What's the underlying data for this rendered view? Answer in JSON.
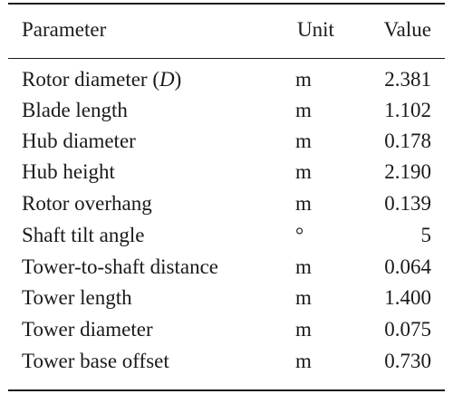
{
  "table": {
    "headers": {
      "parameter": "Parameter",
      "unit": "Unit",
      "value": "Value"
    },
    "rows": [
      {
        "parameter": "Rotor diameter (",
        "symbol": "D",
        "suffix": ")",
        "unit": "m",
        "value": "2.381"
      },
      {
        "parameter": "Blade length",
        "unit": "m",
        "value": "1.102"
      },
      {
        "parameter": "Hub diameter",
        "unit": "m",
        "value": "0.178"
      },
      {
        "parameter": "Hub height",
        "unit": "m",
        "value": "2.190"
      },
      {
        "parameter": "Rotor overhang",
        "unit": "m",
        "value": "0.139"
      },
      {
        "parameter": "Shaft tilt angle",
        "unit": "°",
        "value": "5"
      },
      {
        "parameter": "Tower-to-shaft distance",
        "unit": "m",
        "value": "0.064"
      },
      {
        "parameter": "Tower length",
        "unit": "m",
        "value": "1.400"
      },
      {
        "parameter": "Tower diameter",
        "unit": "m",
        "value": "0.075"
      },
      {
        "parameter": "Tower base offset",
        "unit": "m",
        "value": "0.730"
      }
    ]
  }
}
